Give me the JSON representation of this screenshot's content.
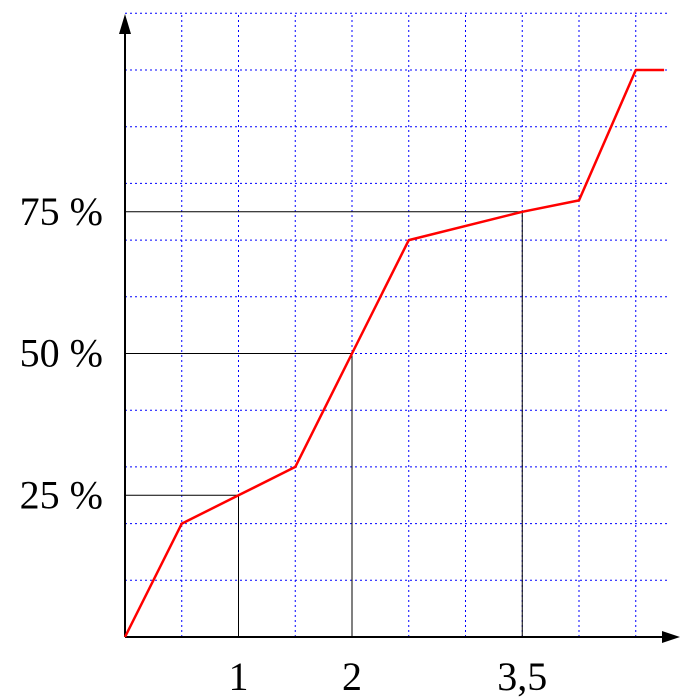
{
  "chart_data": {
    "type": "line",
    "title": "",
    "xlabel": "",
    "ylabel": "",
    "xlim": [
      0,
      4.75
    ],
    "ylim": [
      0,
      100
    ],
    "grid": true,
    "grid_x_step": 0.5,
    "grid_y_step": 10,
    "series": [
      {
        "color": "#ff0000",
        "x": [
          0,
          0.5,
          1,
          1.5,
          2,
          2.5,
          3.5,
          4,
          4.5,
          4.75
        ],
        "y": [
          0,
          20,
          25,
          30,
          50,
          70,
          75,
          77,
          100,
          100
        ]
      }
    ],
    "x_tick_labels": [
      {
        "x": 1,
        "label": "1"
      },
      {
        "x": 2,
        "label": "2"
      },
      {
        "x": 3.5,
        "label": "3,5"
      }
    ],
    "y_tick_labels": [
      {
        "y": 25,
        "label": "25 %"
      },
      {
        "y": 50,
        "label": "50 %"
      },
      {
        "y": 75,
        "label": "75 %"
      }
    ],
    "reference_lines": [
      {
        "x": 1,
        "y": 25
      },
      {
        "x": 2,
        "y": 50
      },
      {
        "x": 3.5,
        "y": 75
      }
    ],
    "colors": {
      "line": "#ff0000",
      "grid": "#0000ff",
      "axes": "#000000",
      "reference": "#000000"
    }
  }
}
